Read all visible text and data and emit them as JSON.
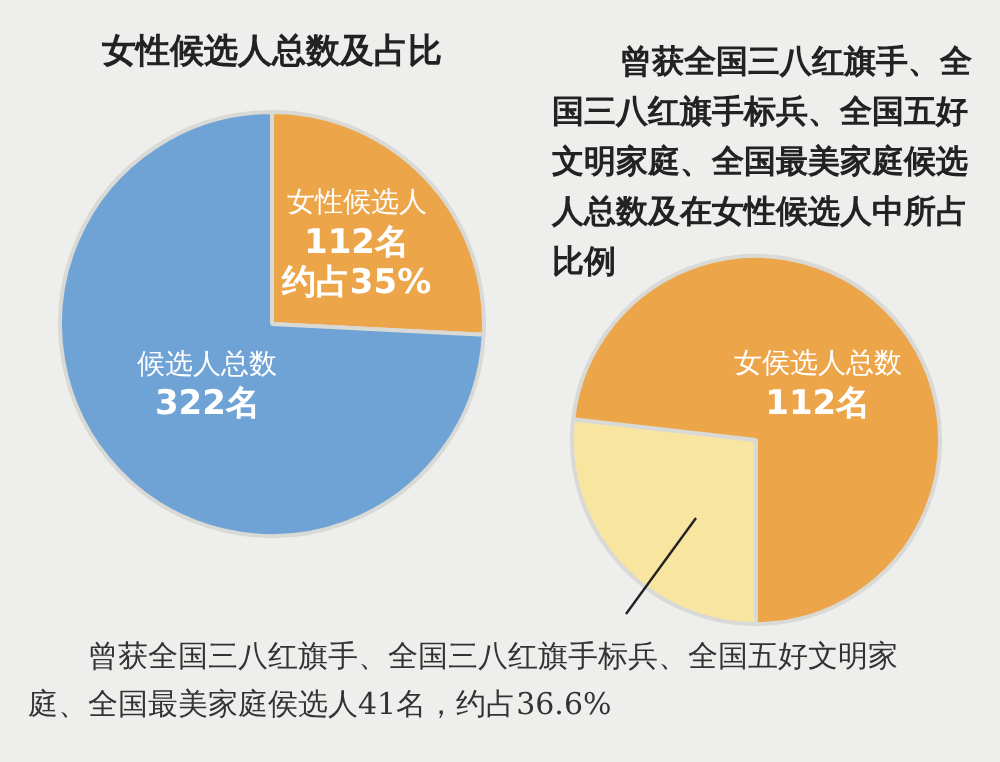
{
  "chart_data": [
    {
      "type": "pie",
      "title": "女性候选人总数及占比",
      "categories": [
        "女性候选人",
        "候选人总数"
      ],
      "values": [
        112,
        322
      ],
      "colors": [
        "#eda54a",
        "#6fa3d6"
      ],
      "value_labels": [
        "112名约占35%",
        "322名"
      ]
    },
    {
      "type": "pie",
      "title": "曾获全国三八红旗手、全国三八红旗手标兵、全国五好文明家庭、全国最美家庭候选人总数及在女性候选人中所占比例",
      "categories": [
        null,
        "女侯选人总数"
      ],
      "values": [
        41,
        112
      ],
      "colors": [
        "#f8e6a0",
        "#eda54a"
      ],
      "value_labels": [
        null,
        "112名"
      ],
      "annotations": [
        "曾获全国三八红旗手、全国三八红旗手标兵、全国五好文明家庭、全国最美家庭侯选人41名，约占36.6%"
      ]
    }
  ]
}
